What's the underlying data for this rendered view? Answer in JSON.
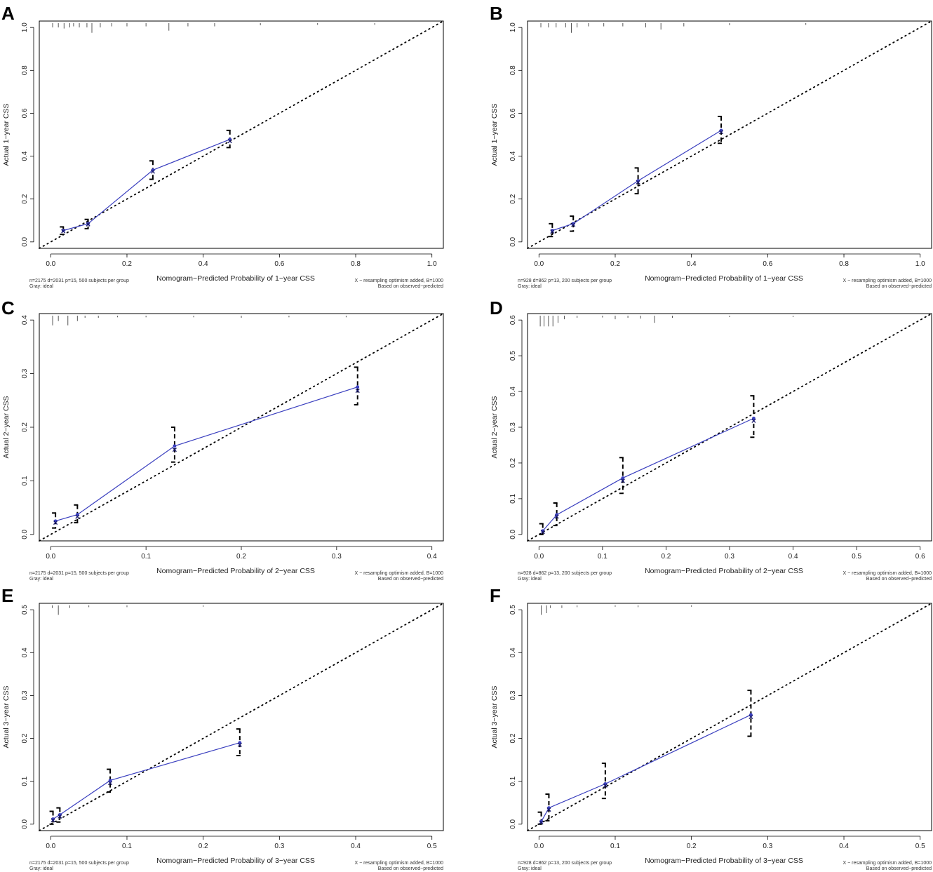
{
  "figure": {
    "colors": {
      "apparent": "#3a3fbf",
      "bias_x": "#1a1a6e",
      "ideal": "#000000",
      "ci": "#000000",
      "rug": "#555555",
      "frame": "#000000"
    }
  },
  "chart_data": [
    {
      "type": "line",
      "panel_label": "A",
      "xlabel": "Nomogram−Predicted Probability of 1−year CSS",
      "ylabel": "Actual 1−year CSS",
      "xlim": [
        -0.03,
        1.03
      ],
      "ylim": [
        -0.03,
        1.03
      ],
      "xticks": [
        0.0,
        0.2,
        0.4,
        0.6,
        0.8,
        1.0
      ],
      "xtick_labels": [
        "0.0",
        "0.2",
        "0.4",
        "0.6",
        "0.8",
        "1.0"
      ],
      "yticks": [
        0.0,
        0.2,
        0.4,
        0.6,
        0.8,
        1.0
      ],
      "ytick_labels": [
        "0.0",
        "0.2",
        "0.4",
        "0.6",
        "0.8",
        "1.0"
      ],
      "ideal_line": [
        [
          -0.03,
          -0.03
        ],
        [
          1.03,
          1.03
        ]
      ],
      "series": [
        {
          "name": "apparent",
          "x": [
            0.033,
            0.098,
            0.268,
            0.47
          ],
          "y": [
            0.053,
            0.085,
            0.335,
            0.478
          ]
        },
        {
          "name": "bias-corrected",
          "x": [
            0.033,
            0.098,
            0.268,
            0.47
          ],
          "y": [
            0.05,
            0.082,
            0.328,
            0.47
          ]
        }
      ],
      "ci": [
        {
          "x": 0.033,
          "low": 0.035,
          "high": 0.07
        },
        {
          "x": 0.098,
          "low": 0.062,
          "high": 0.105
        },
        {
          "x": 0.268,
          "low": 0.292,
          "high": 0.378
        },
        {
          "x": 0.47,
          "low": 0.44,
          "high": 0.52
        }
      ],
      "rug": [
        [
          0.005,
          0.02
        ],
        [
          0.02,
          0.02
        ],
        [
          0.035,
          0.025
        ],
        [
          0.05,
          0.02
        ],
        [
          0.06,
          0.015
        ],
        [
          0.075,
          0.02
        ],
        [
          0.095,
          0.02
        ],
        [
          0.108,
          0.045
        ],
        [
          0.13,
          0.02
        ],
        [
          0.16,
          0.015
        ],
        [
          0.2,
          0.015
        ],
        [
          0.25,
          0.015
        ],
        [
          0.31,
          0.035
        ],
        [
          0.36,
          0.015
        ],
        [
          0.43,
          0.015
        ],
        [
          0.55,
          0.01
        ],
        [
          0.7,
          0.008
        ],
        [
          0.85,
          0.008
        ]
      ],
      "rug_length_max": 0.045,
      "note_left": [
        "n=2175 d=2031 p=15, 500 subjects per group",
        "Gray: ideal"
      ],
      "note_right": [
        "X − resampling optimism added, B=1000",
        "Based on observed−predicted"
      ]
    },
    {
      "type": "line",
      "panel_label": "B",
      "xlabel": "Nomogram−Predicted Probability of 1−year CSS",
      "ylabel": "Actual 1−year CSS",
      "xlim": [
        -0.03,
        1.03
      ],
      "ylim": [
        -0.03,
        1.03
      ],
      "xticks": [
        0.0,
        0.2,
        0.4,
        0.6,
        0.8,
        1.0
      ],
      "xtick_labels": [
        "0.0",
        "0.2",
        "0.4",
        "0.6",
        "0.8",
        "1.0"
      ],
      "yticks": [
        0.0,
        0.2,
        0.4,
        0.6,
        0.8,
        1.0
      ],
      "ytick_labels": [
        "0.0",
        "0.2",
        "0.4",
        "0.6",
        "0.8",
        "1.0"
      ],
      "ideal_line": [
        [
          -0.03,
          -0.03
        ],
        [
          1.03,
          1.03
        ]
      ],
      "series": [
        {
          "name": "apparent",
          "x": [
            0.035,
            0.09,
            0.26,
            0.478
          ],
          "y": [
            0.053,
            0.085,
            0.285,
            0.52
          ]
        },
        {
          "name": "bias-corrected",
          "x": [
            0.035,
            0.09,
            0.26,
            0.478
          ],
          "y": [
            0.048,
            0.08,
            0.278,
            0.512
          ]
        }
      ],
      "ci": [
        {
          "x": 0.035,
          "low": 0.025,
          "high": 0.085
        },
        {
          "x": 0.09,
          "low": 0.05,
          "high": 0.12
        },
        {
          "x": 0.26,
          "low": 0.225,
          "high": 0.345
        },
        {
          "x": 0.478,
          "low": 0.46,
          "high": 0.585
        }
      ],
      "rug": [
        [
          0.005,
          0.02
        ],
        [
          0.025,
          0.02
        ],
        [
          0.045,
          0.02
        ],
        [
          0.07,
          0.02
        ],
        [
          0.085,
          0.045
        ],
        [
          0.1,
          0.02
        ],
        [
          0.13,
          0.015
        ],
        [
          0.17,
          0.015
        ],
        [
          0.22,
          0.015
        ],
        [
          0.28,
          0.02
        ],
        [
          0.32,
          0.03
        ],
        [
          0.38,
          0.015
        ],
        [
          0.5,
          0.01
        ],
        [
          0.7,
          0.008
        ]
      ],
      "rug_length_max": 0.045,
      "note_left": [
        "n=928 d=862 p=13, 200 subjects per group",
        "Gray: ideal"
      ],
      "note_right": [
        "X − resampling optimism added, B=1000",
        "Based on observed−predicted"
      ]
    },
    {
      "type": "line",
      "panel_label": "C",
      "xlabel": "Nomogram−Predicted Probability of 2−year CSS",
      "ylabel": "Actual 2−year CSS",
      "xlim": [
        -0.012,
        0.412
      ],
      "ylim": [
        -0.012,
        0.412
      ],
      "xticks": [
        0.0,
        0.1,
        0.2,
        0.3,
        0.4
      ],
      "xtick_labels": [
        "0.0",
        "0.1",
        "0.2",
        "0.3",
        "0.4"
      ],
      "yticks": [
        0.0,
        0.1,
        0.2,
        0.3,
        0.4
      ],
      "ytick_labels": [
        "0.0",
        "0.1",
        "0.2",
        "0.3",
        "0.4"
      ],
      "ideal_line": [
        [
          -0.012,
          -0.012
        ],
        [
          0.412,
          0.412
        ]
      ],
      "series": [
        {
          "name": "apparent",
          "x": [
            0.005,
            0.028,
            0.13,
            0.322
          ],
          "y": [
            0.025,
            0.037,
            0.165,
            0.275
          ]
        },
        {
          "name": "bias-corrected",
          "x": [
            0.005,
            0.028,
            0.13,
            0.322
          ],
          "y": [
            0.022,
            0.033,
            0.158,
            0.268
          ]
        }
      ],
      "ci": [
        {
          "x": 0.005,
          "low": 0.012,
          "high": 0.04
        },
        {
          "x": 0.028,
          "low": 0.022,
          "high": 0.055
        },
        {
          "x": 0.13,
          "low": 0.135,
          "high": 0.2
        },
        {
          "x": 0.322,
          "low": 0.242,
          "high": 0.312
        }
      ],
      "rug": [
        [
          0.002,
          0.018
        ],
        [
          0.008,
          0.01
        ],
        [
          0.018,
          0.018
        ],
        [
          0.028,
          0.01
        ],
        [
          0.036,
          0.004
        ],
        [
          0.05,
          0.004
        ],
        [
          0.07,
          0.003
        ],
        [
          0.1,
          0.003
        ],
        [
          0.15,
          0.003
        ],
        [
          0.2,
          0.004
        ],
        [
          0.25,
          0.003
        ],
        [
          0.31,
          0.003
        ]
      ],
      "rug_length_max": 0.018,
      "note_left": [
        "n=2175 d=2031 p=15, 500 subjects per group",
        "Gray: ideal"
      ],
      "note_right": [
        "X − resampling optimism added, B=1000",
        "Based on observed−predicted"
      ]
    },
    {
      "type": "line",
      "panel_label": "D",
      "xlabel": "Nomogram−Predicted Probability of 2−year CSS",
      "ylabel": "Actual 2−year CSS",
      "xlim": [
        -0.018,
        0.618
      ],
      "ylim": [
        -0.018,
        0.618
      ],
      "xticks": [
        0.0,
        0.1,
        0.2,
        0.3,
        0.4,
        0.5,
        0.6
      ],
      "xtick_labels": [
        "0.0",
        "0.1",
        "0.2",
        "0.3",
        "0.4",
        "0.5",
        "0.6"
      ],
      "yticks": [
        0.0,
        0.1,
        0.2,
        0.3,
        0.4,
        0.5,
        0.6
      ],
      "ytick_labels": [
        "0.0",
        "0.1",
        "0.2",
        "0.3",
        "0.4",
        "0.5",
        "0.6"
      ],
      "ideal_line": [
        [
          -0.018,
          -0.018
        ],
        [
          0.618,
          0.618
        ]
      ],
      "series": [
        {
          "name": "apparent",
          "x": [
            0.006,
            0.028,
            0.132,
            0.338
          ],
          "y": [
            0.01,
            0.055,
            0.158,
            0.325
          ]
        },
        {
          "name": "bias-corrected",
          "x": [
            0.006,
            0.028,
            0.132,
            0.338
          ],
          "y": [
            0.007,
            0.05,
            0.15,
            0.318
          ]
        }
      ],
      "ci": [
        {
          "x": 0.006,
          "low": 0.0,
          "high": 0.03
        },
        {
          "x": 0.028,
          "low": 0.025,
          "high": 0.088
        },
        {
          "x": 0.132,
          "low": 0.115,
          "high": 0.215
        },
        {
          "x": 0.338,
          "low": 0.272,
          "high": 0.388
        }
      ],
      "rug": [
        [
          0.002,
          0.03
        ],
        [
          0.008,
          0.03
        ],
        [
          0.015,
          0.03
        ],
        [
          0.022,
          0.03
        ],
        [
          0.03,
          0.02
        ],
        [
          0.04,
          0.01
        ],
        [
          0.06,
          0.006
        ],
        [
          0.1,
          0.005
        ],
        [
          0.12,
          0.01
        ],
        [
          0.14,
          0.006
        ],
        [
          0.16,
          0.008
        ],
        [
          0.182,
          0.02
        ],
        [
          0.21,
          0.006
        ],
        [
          0.3,
          0.004
        ],
        [
          0.4,
          0.004
        ]
      ],
      "rug_length_max": 0.03,
      "note_left": [
        "n=928 d=862 p=13, 200 subjects per group",
        "Gray: ideal"
      ],
      "note_right": [
        "X − resampling optimism added, B=1000",
        "Based on observed−predicted"
      ]
    },
    {
      "type": "line",
      "panel_label": "E",
      "xlabel": "Nomogram−Predicted Probability of 3−year CSS",
      "ylabel": "Actual 3−year CSS",
      "xlim": [
        -0.015,
        0.515
      ],
      "ylim": [
        -0.015,
        0.515
      ],
      "xticks": [
        0.0,
        0.1,
        0.2,
        0.3,
        0.4,
        0.5
      ],
      "xtick_labels": [
        "0.0",
        "0.1",
        "0.2",
        "0.3",
        "0.4",
        "0.5"
      ],
      "yticks": [
        0.0,
        0.1,
        0.2,
        0.3,
        0.4,
        0.5
      ],
      "ytick_labels": [
        "0.0",
        "0.1",
        "0.2",
        "0.3",
        "0.4",
        "0.5"
      ],
      "ideal_line": [
        [
          -0.015,
          -0.015
        ],
        [
          0.515,
          0.515
        ]
      ],
      "series": [
        {
          "name": "apparent",
          "x": [
            0.003,
            0.012,
            0.078,
            0.248
          ],
          "y": [
            0.012,
            0.022,
            0.102,
            0.19
          ]
        },
        {
          "name": "bias-corrected",
          "x": [
            0.003,
            0.012,
            0.078,
            0.248
          ],
          "y": [
            0.009,
            0.018,
            0.096,
            0.185
          ]
        }
      ],
      "ci": [
        {
          "x": 0.003,
          "low": 0.0,
          "high": 0.03
        },
        {
          "x": 0.012,
          "low": 0.005,
          "high": 0.038
        },
        {
          "x": 0.078,
          "low": 0.075,
          "high": 0.128
        },
        {
          "x": 0.248,
          "low": 0.16,
          "high": 0.222
        }
      ],
      "rug": [
        [
          0.002,
          0.006
        ],
        [
          0.01,
          0.022
        ],
        [
          0.025,
          0.006
        ],
        [
          0.05,
          0.004
        ],
        [
          0.1,
          0.004
        ],
        [
          0.2,
          0.003
        ]
      ],
      "rug_length_max": 0.022,
      "note_left": [
        "n=2175 d=2031 p=15, 500 subjects per group",
        "Gray: ideal"
      ],
      "note_right": [
        "X − resampling optimism added, B=1000",
        "Based on observed−predicted"
      ]
    },
    {
      "type": "line",
      "panel_label": "F",
      "xlabel": "Nomogram−Predicted Probability of 3−year CSS",
      "ylabel": "Actual 3−year CSS",
      "xlim": [
        -0.015,
        0.515
      ],
      "ylim": [
        -0.015,
        0.515
      ],
      "xticks": [
        0.0,
        0.1,
        0.2,
        0.3,
        0.4,
        0.5
      ],
      "xtick_labels": [
        "0.0",
        "0.1",
        "0.2",
        "0.3",
        "0.4",
        "0.5"
      ],
      "yticks": [
        0.0,
        0.1,
        0.2,
        0.3,
        0.4,
        0.5
      ],
      "ytick_labels": [
        "0.0",
        "0.1",
        "0.2",
        "0.3",
        "0.4",
        "0.5"
      ],
      "ideal_line": [
        [
          -0.015,
          -0.015
        ],
        [
          0.515,
          0.515
        ]
      ],
      "series": [
        {
          "name": "apparent",
          "x": [
            0.003,
            0.013,
            0.087,
            0.278
          ],
          "y": [
            0.006,
            0.038,
            0.094,
            0.255
          ]
        },
        {
          "name": "bias-corrected",
          "x": [
            0.003,
            0.013,
            0.087,
            0.278
          ],
          "y": [
            0.004,
            0.034,
            0.09,
            0.25
          ]
        }
      ],
      "ci": [
        {
          "x": 0.003,
          "low": 0.0,
          "high": 0.028
        },
        {
          "x": 0.013,
          "low": 0.008,
          "high": 0.07
        },
        {
          "x": 0.087,
          "low": 0.06,
          "high": 0.142
        },
        {
          "x": 0.278,
          "low": 0.205,
          "high": 0.312
        }
      ],
      "rug": [
        [
          0.003,
          0.022
        ],
        [
          0.01,
          0.018
        ],
        [
          0.015,
          0.006
        ],
        [
          0.03,
          0.006
        ],
        [
          0.05,
          0.004
        ],
        [
          0.1,
          0.003
        ],
        [
          0.13,
          0.004
        ],
        [
          0.2,
          0.003
        ]
      ],
      "rug_length_max": 0.022,
      "note_left": [
        "n=928 d=862 p=13, 200 subjects per group",
        "Gray: ideal"
      ],
      "note_right": [
        "X − resampling optimism added, B=1000",
        "Based on observed−predicted"
      ]
    }
  ]
}
